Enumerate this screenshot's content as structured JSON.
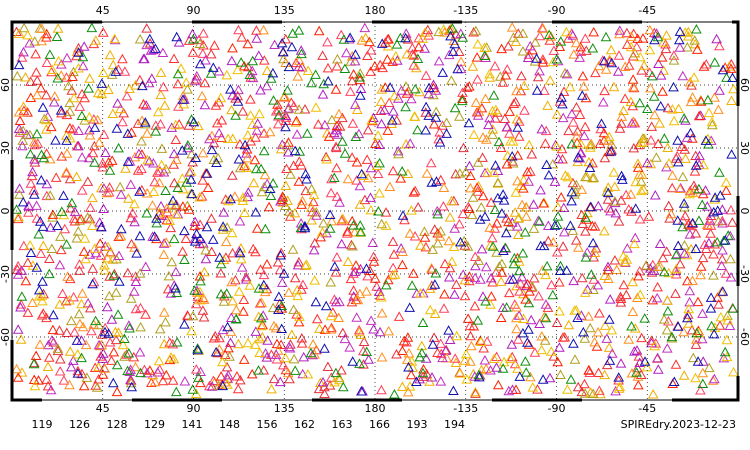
{
  "map": {
    "lonlim": [
      0,
      360
    ],
    "latlim": [
      -90,
      90
    ],
    "lon_ticks": [
      45,
      90,
      135,
      180,
      -135,
      -90,
      -45
    ],
    "lat_ticks": [
      60,
      30,
      0,
      -30,
      -60
    ],
    "legend": [
      {
        "label": 119,
        "color": "#e8303a"
      },
      {
        "label": 126,
        "color": "#ff3030"
      },
      {
        "label": 128,
        "color": "#f0b000"
      },
      {
        "label": 129,
        "color": "#ff4060"
      },
      {
        "label": 141,
        "color": "#b020c0"
      },
      {
        "label": 148,
        "color": "#b0a020"
      },
      {
        "label": 156,
        "color": "#ff2000"
      },
      {
        "label": 162,
        "color": "#ff9020"
      },
      {
        "label": 163,
        "color": "#c030c0"
      },
      {
        "label": 166,
        "color": "#f0c000"
      },
      {
        "label": 193,
        "color": "#109010"
      },
      {
        "label": 194,
        "color": "#1010b0"
      }
    ],
    "title": "SPIREdry.2023-12-23"
  }
}
